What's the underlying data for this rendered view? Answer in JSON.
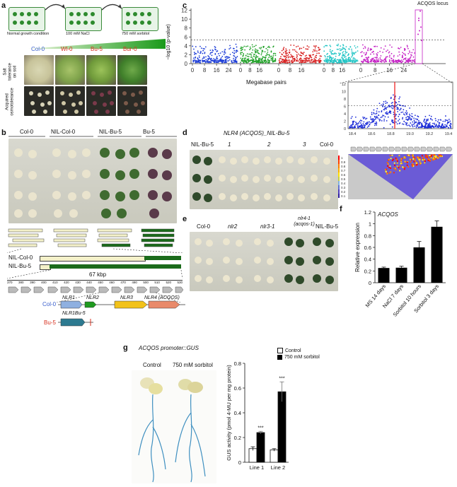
{
  "panel_letters": {
    "a": "a",
    "b": "b",
    "c": "c",
    "d": "d",
    "e": "e",
    "f": "f",
    "g": "g"
  },
  "panel_a": {
    "conditions": [
      "Normal growth condition",
      "100 mM NaCl",
      "750 mM sorbitol"
    ],
    "accessions": [
      "Col-0",
      "Wl-0",
      "Bu-5",
      "Bur-0"
    ],
    "row_labels": [
      "Salt tolerance on soil",
      "Acquired osmotolerance"
    ]
  },
  "panel_b": {
    "columns": [
      "Col-0",
      "NIL-Col-0",
      "NIL-Bu-5",
      "Bu-5"
    ],
    "nil_labels": [
      "NIL-Col-0",
      "NIL-Bu-5"
    ],
    "size_label": "67 kbp",
    "ruler_ticks": [
      "370",
      "380",
      "390",
      "400",
      "410",
      "420",
      "430",
      "440",
      "450",
      "460",
      "470",
      "490",
      "500",
      "510",
      "520",
      "530"
    ],
    "genes": [
      "NLR1",
      "NLR2",
      "NLR3",
      "NLR4 (ACQOS)"
    ],
    "accession_labels": [
      "Col-0",
      "Bu-5"
    ],
    "bu5_gene": "NLR1Bu-5",
    "colors": {
      "col0": "#3a5fcd",
      "bu5": "#d7301f",
      "dark_green": "#1b6b1b",
      "light": "#f4f1c9"
    }
  },
  "panel_c": {
    "locus_label": "ACQOS locus",
    "ylabel": "−log10 (p-value)",
    "xlabel": "Megabase pairs",
    "y_ticks": [
      "0",
      "2",
      "4",
      "6",
      "8",
      "10",
      "12"
    ],
    "x_ticks": [
      "0",
      "8",
      "16",
      "24",
      "0",
      "8",
      "16",
      "0",
      "8",
      "16",
      "0",
      "8",
      "16",
      "0",
      "8",
      "16",
      "24"
    ],
    "zoom_y_ticks": [
      "0",
      "2",
      "4",
      "6",
      "8",
      "10",
      "12"
    ],
    "zoom_x_ticks": [
      "18.4",
      "18.6",
      "18.8",
      "19.0",
      "19.2",
      "19.4"
    ],
    "ld_scale": [
      "1",
      "0.9",
      "0.8",
      "0.7",
      "0.6",
      "0.5",
      "0.4",
      "0.3",
      "0.2",
      "0.1"
    ],
    "chrom_colors": [
      "#1f3fd8",
      "#22a22a",
      "#d82222",
      "#22c5c5",
      "#c522c5"
    ]
  },
  "panel_d": {
    "header": "NLR4 (ACQOS)_NIL-Bu-5",
    "columns": [
      "NIL-Bu-5",
      "1",
      "2",
      "3",
      "Col-0"
    ]
  },
  "panel_e": {
    "columns": [
      "Col-0",
      "nlr2",
      "nlr3-1",
      "nlr4-1 (acqos-1)",
      "NIL-Bu-5"
    ]
  },
  "panel_f": {
    "title": "ACQOS",
    "chart_data": {
      "type": "bar",
      "categories": [
        "MS 14 days",
        "NaCl 7 days",
        "Sorbitol 10 hours",
        "Sorbitol 3 days"
      ],
      "values": [
        0.25,
        0.255,
        0.6,
        0.95
      ],
      "errors": [
        0.015,
        0.025,
        0.1,
        0.1
      ],
      "ylabel": "Relative expression",
      "ylim": [
        0,
        1.2
      ],
      "y_ticks": [
        "0",
        "0.2",
        "0.4",
        "0.6",
        "0.8",
        "1",
        "1.2"
      ],
      "bar_color": "#000000"
    }
  },
  "panel_g": {
    "title": "ACQOS promoter::GUS",
    "image_labels": [
      "Control",
      "750 mM sorbitol"
    ],
    "legend": [
      "Control",
      "750 mM sorbitol"
    ],
    "chart_data": {
      "type": "bar",
      "categories": [
        "Line 1",
        "Line 2"
      ],
      "series": [
        {
          "name": "Control",
          "values": [
            0.11,
            0.1
          ],
          "errors": [
            0.015,
            0.01
          ],
          "color": "#ffffff"
        },
        {
          "name": "750 mM sorbitol",
          "values": [
            0.24,
            0.57
          ],
          "errors": [
            0.01,
            0.08
          ],
          "color": "#000000"
        }
      ],
      "significance": [
        "***",
        "***"
      ],
      "ylabel": "GUS activity (pmol 4-MU per mg protein)",
      "ylim": [
        0,
        0.8
      ],
      "y_ticks": [
        "0",
        "0.2",
        "0.4",
        "0.6",
        "0.8"
      ]
    }
  }
}
